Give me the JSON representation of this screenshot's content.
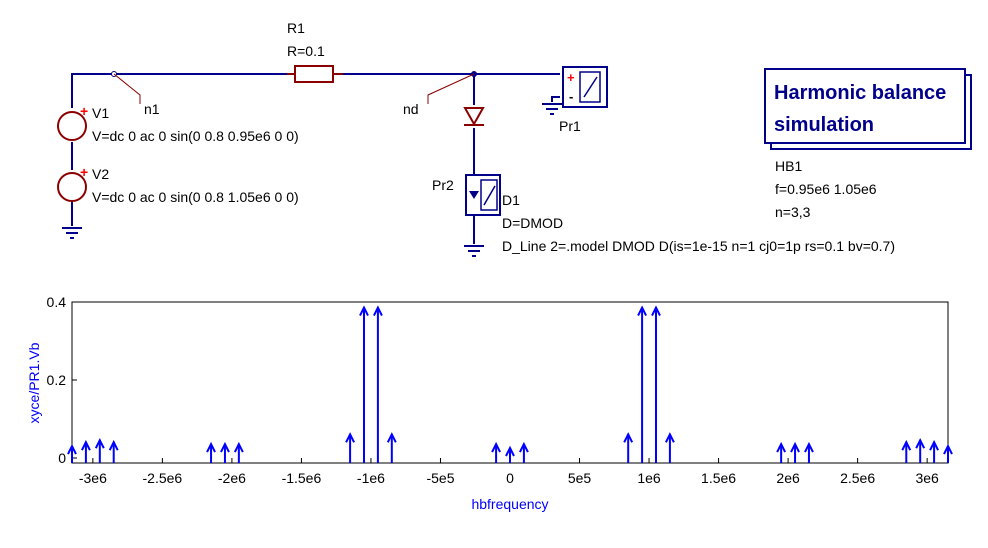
{
  "schematic": {
    "r1": {
      "name": "R1",
      "value": "R=0.1"
    },
    "v1": {
      "name": "V1",
      "params": "V=dc 0 ac 0 sin(0 0.8 0.95e6 0 0)"
    },
    "v2": {
      "name": "V2",
      "params": "V=dc 0 ac 0 sin(0 0.8 1.05e6 0 0)"
    },
    "n1": "n1",
    "nd": "nd",
    "pr1": "Pr1",
    "pr2": "Pr2",
    "d1": {
      "name": "D1",
      "model": "D=DMOD",
      "line": "D_Line 2=.model DMOD D(is=1e-15 n=1 cj0=1p rs=0.1 bv=0.7)"
    },
    "hb": {
      "title_line1": "Harmonic balance",
      "title_line2": "simulation",
      "name": "HB1",
      "freq": "f=0.95e6 1.05e6",
      "n": "n=3,3"
    },
    "plus": "+",
    "minus": "-"
  },
  "colors": {
    "wire": "#00008b",
    "component": "#8b0000",
    "plot": "#0000ff"
  },
  "chart_data": {
    "type": "stem",
    "ylabel": "xyce/PR1.Vb",
    "xlabel": "hbfrequency",
    "xlim": [
      -3150000,
      3150000
    ],
    "ylim": [
      0,
      0.4
    ],
    "xticks": [
      -3000000,
      -2500000,
      -2000000,
      -1500000,
      -1000000,
      -500000,
      0,
      500000,
      1000000,
      1500000,
      2000000,
      2500000,
      3000000
    ],
    "xtick_labels": [
      "-3e6",
      "-2.5e6",
      "-2e6",
      "-1.5e6",
      "-1e6",
      "-5e5",
      "0",
      "5e5",
      "1e6",
      "1.5e6",
      "2e6",
      "2.5e6",
      "3e6"
    ],
    "yticks": [
      0,
      0.2,
      0.4
    ],
    "ytick_labels": [
      "0",
      "0.2",
      "0.4"
    ],
    "x": [
      -3150000,
      -3050000,
      -2950000,
      -2850000,
      -2150000,
      -2050000,
      -1950000,
      -1150000,
      -1050000,
      -950000,
      -850000,
      -100000,
      0,
      100000,
      850000,
      950000,
      1050000,
      1150000,
      1950000,
      2050000,
      2150000,
      2850000,
      2950000,
      3050000,
      3150000
    ],
    "y": [
      0.005,
      0.015,
      0.02,
      0.015,
      0.01,
      0.01,
      0.01,
      0.035,
      0.36,
      0.36,
      0.035,
      0.01,
      0.0,
      0.01,
      0.035,
      0.36,
      0.36,
      0.035,
      0.01,
      0.01,
      0.01,
      0.015,
      0.02,
      0.015,
      0.005
    ]
  }
}
